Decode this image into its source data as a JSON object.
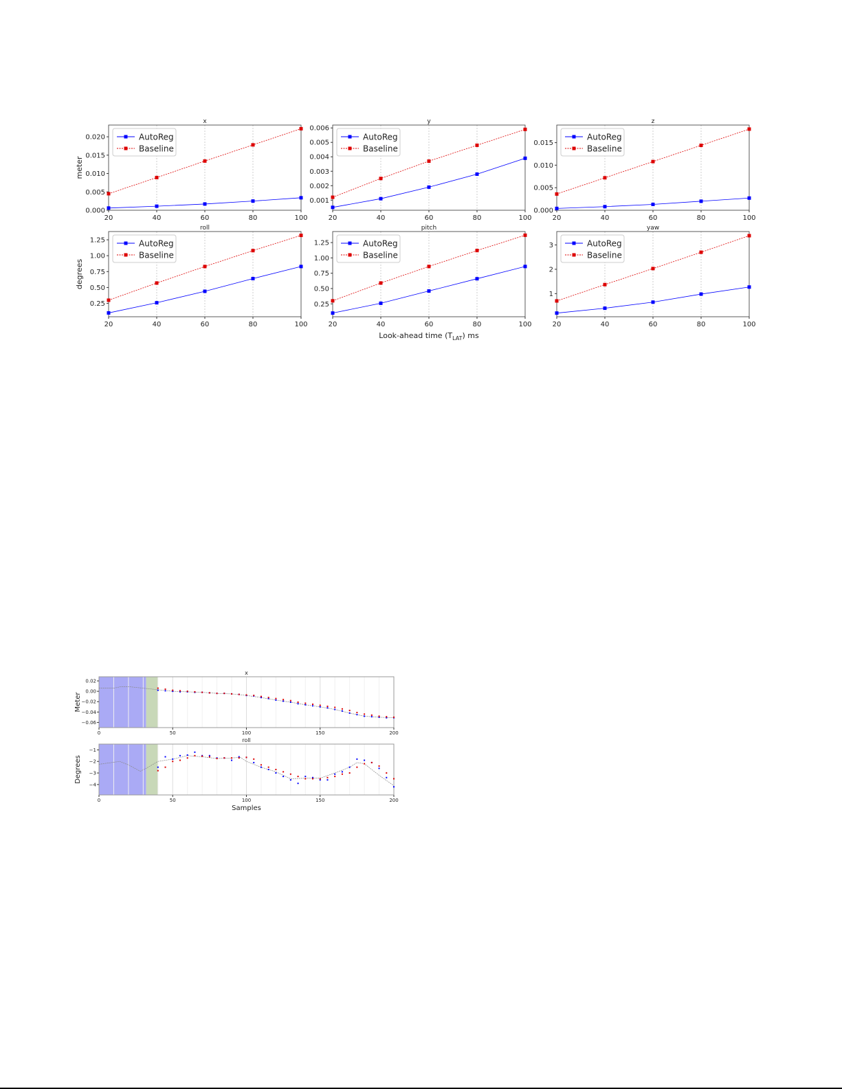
{
  "chart_data": [
    {
      "type": "line",
      "title": "x",
      "ylabel": "meter",
      "xlabel": "",
      "x": [
        20,
        40,
        60,
        80,
        100
      ],
      "xlim": [
        20,
        100
      ],
      "ylim": [
        0,
        0.0232
      ],
      "yticks": [
        "0.000",
        "0.005",
        "0.010",
        "0.015",
        "0.020"
      ],
      "grid": "vertical dotted",
      "legend": "top-left",
      "series": [
        {
          "name": "AutoReg",
          "color": "#0000ff",
          "values": [
            0.0006,
            0.0011,
            0.0017,
            0.0025,
            0.0034
          ]
        },
        {
          "name": "Baseline",
          "color": "#dd0000",
          "values": [
            0.0045,
            0.0089,
            0.0134,
            0.0178,
            0.0222
          ]
        }
      ]
    },
    {
      "type": "line",
      "title": "y",
      "ylabel": "",
      "xlabel": "",
      "x": [
        20,
        40,
        60,
        80,
        100
      ],
      "xlim": [
        20,
        100
      ],
      "ylim": [
        0.0003,
        0.0062
      ],
      "yticks": [
        "0.001",
        "0.002",
        "0.003",
        "0.004",
        "0.005",
        "0.006"
      ],
      "grid": "vertical dotted",
      "legend": "top-left",
      "series": [
        {
          "name": "AutoReg",
          "color": "#0000ff",
          "values": [
            0.0005,
            0.0011,
            0.0019,
            0.0028,
            0.0039
          ]
        },
        {
          "name": "Baseline",
          "color": "#dd0000",
          "values": [
            0.0012,
            0.0025,
            0.0037,
            0.0048,
            0.0059
          ]
        }
      ]
    },
    {
      "type": "line",
      "title": "z",
      "ylabel": "",
      "xlabel": "",
      "x": [
        20,
        40,
        60,
        80,
        100
      ],
      "xlim": [
        20,
        100
      ],
      "ylim": [
        0,
        0.0189
      ],
      "yticks": [
        "0.000",
        "0.005",
        "0.010",
        "0.015"
      ],
      "grid": "vertical dotted",
      "legend": "top-left",
      "series": [
        {
          "name": "AutoReg",
          "color": "#0000ff",
          "values": [
            0.0004,
            0.0008,
            0.0013,
            0.002,
            0.0027
          ]
        },
        {
          "name": "Baseline",
          "color": "#dd0000",
          "values": [
            0.0036,
            0.0072,
            0.0108,
            0.0144,
            0.018
          ]
        }
      ]
    },
    {
      "type": "line",
      "title": "roll",
      "ylabel": "degrees",
      "xlabel": "",
      "x": [
        20,
        40,
        60,
        80,
        100
      ],
      "xlim": [
        20,
        100
      ],
      "ylim": [
        0.04,
        1.38
      ],
      "yticks": [
        "0.25",
        "0.50",
        "0.75",
        "1.00",
        "1.25"
      ],
      "grid": "vertical dotted",
      "legend": "top-left",
      "series": [
        {
          "name": "AutoReg",
          "color": "#0000ff",
          "values": [
            0.1,
            0.26,
            0.44,
            0.64,
            0.83
          ]
        },
        {
          "name": "Baseline",
          "color": "#dd0000",
          "values": [
            0.3,
            0.57,
            0.83,
            1.08,
            1.32
          ]
        }
      ]
    },
    {
      "type": "line",
      "title": "pitch",
      "ylabel": "",
      "xlabel": "Look-ahead time (T_LAT) ms",
      "x": [
        20,
        40,
        60,
        80,
        100
      ],
      "xlim": [
        20,
        100
      ],
      "ylim": [
        0.04,
        1.43
      ],
      "yticks": [
        "0.25",
        "0.50",
        "0.75",
        "1.00",
        "1.25"
      ],
      "grid": "vertical dotted",
      "legend": "top-left",
      "series": [
        {
          "name": "AutoReg",
          "color": "#0000ff",
          "values": [
            0.1,
            0.26,
            0.46,
            0.66,
            0.86
          ]
        },
        {
          "name": "Baseline",
          "color": "#dd0000",
          "values": [
            0.3,
            0.59,
            0.86,
            1.12,
            1.37
          ]
        }
      ]
    },
    {
      "type": "line",
      "title": "yaw",
      "ylabel": "",
      "xlabel": "",
      "x": [
        20,
        40,
        60,
        80,
        100
      ],
      "xlim": [
        20,
        100
      ],
      "ylim": [
        0.05,
        3.55
      ],
      "yticks": [
        "1",
        "2",
        "3"
      ],
      "grid": "vertical dotted",
      "legend": "top-left",
      "series": [
        {
          "name": "AutoReg",
          "color": "#0000ff",
          "values": [
            0.2,
            0.4,
            0.65,
            0.98,
            1.27
          ]
        },
        {
          "name": "Baseline",
          "color": "#dd0000",
          "values": [
            0.7,
            1.37,
            2.03,
            2.7,
            3.38
          ]
        }
      ]
    },
    {
      "type": "scatter",
      "title": "x",
      "ylabel": "Meter",
      "xlabel": "",
      "xlim": [
        0,
        200
      ],
      "ylim": [
        -0.07,
        0.028
      ],
      "xticks": [
        "0",
        "50",
        "100",
        "150",
        "200"
      ],
      "yticks": [
        "−0.06",
        "−0.04",
        "−0.02",
        "0.00",
        "0.02"
      ],
      "ytick_values": [
        -0.06,
        -0.04,
        -0.02,
        0,
        0.02
      ],
      "shaded_regions": [
        {
          "from": 0,
          "to": 32,
          "color": "#aaaaf5"
        },
        {
          "from": 32,
          "to": 40,
          "color": "#c8d8b8"
        }
      ],
      "series": [
        {
          "style": "dashed-line",
          "color": "#888888",
          "x": [
            0,
            10,
            15,
            20,
            30,
            40,
            50,
            60,
            70,
            80,
            90,
            100,
            110,
            120,
            130,
            140,
            150,
            160,
            170,
            180,
            190,
            200
          ],
          "values": [
            0.006,
            0.006,
            0.009,
            0.009,
            0.006,
            0.003,
            0,
            -0.001,
            -0.002,
            -0.004,
            -0.005,
            -0.008,
            -0.012,
            -0.017,
            -0.021,
            -0.026,
            -0.03,
            -0.035,
            -0.042,
            -0.048,
            -0.05,
            -0.051
          ]
        },
        {
          "style": "dots",
          "color": "#0000ff",
          "x": [
            40,
            45,
            50,
            55,
            60,
            65,
            70,
            75,
            80,
            85,
            90,
            95,
            100,
            105,
            110,
            115,
            120,
            125,
            130,
            135,
            140,
            145,
            150,
            155,
            160,
            165,
            170,
            175,
            180,
            185,
            190,
            195,
            200
          ],
          "values": [
            0.002,
            0.001,
            0,
            -0.001,
            -0.001,
            -0.002,
            -0.002,
            -0.003,
            -0.004,
            -0.004,
            -0.005,
            -0.006,
            -0.008,
            -0.009,
            -0.012,
            -0.014,
            -0.017,
            -0.019,
            -0.021,
            -0.024,
            -0.026,
            -0.028,
            -0.03,
            -0.032,
            -0.035,
            -0.038,
            -0.042,
            -0.045,
            -0.048,
            -0.049,
            -0.05,
            -0.051,
            -0.051
          ]
        },
        {
          "style": "dots",
          "color": "#dd0000",
          "x": [
            40,
            45,
            50,
            55,
            60,
            65,
            70,
            75,
            80,
            85,
            90,
            95,
            100,
            105,
            110,
            115,
            120,
            125,
            130,
            135,
            140,
            145,
            150,
            155,
            160,
            165,
            170,
            175,
            180,
            185,
            190,
            195,
            200
          ],
          "values": [
            0.006,
            0.004,
            0.002,
            0.001,
            0,
            -0.001,
            -0.002,
            -0.003,
            -0.004,
            -0.004,
            -0.005,
            -0.006,
            -0.007,
            -0.008,
            -0.01,
            -0.012,
            -0.014,
            -0.016,
            -0.018,
            -0.021,
            -0.023,
            -0.025,
            -0.027,
            -0.029,
            -0.031,
            -0.034,
            -0.037,
            -0.041,
            -0.044,
            -0.046,
            -0.048,
            -0.049,
            -0.05
          ]
        }
      ]
    },
    {
      "type": "scatter",
      "title": "roll",
      "ylabel": "Degrees",
      "xlabel": "Samples",
      "xlim": [
        0,
        200
      ],
      "ylim": [
        -4.9,
        -0.5
      ],
      "xticks": [
        "0",
        "50",
        "100",
        "150",
        "200"
      ],
      "yticks": [
        "−4",
        "−3",
        "−2",
        "−1"
      ],
      "ytick_values": [
        -4,
        -3,
        -2,
        -1
      ],
      "shaded_regions": [
        {
          "from": 0,
          "to": 32,
          "color": "#aaaaf5"
        },
        {
          "from": 32,
          "to": 40,
          "color": "#c8d8b8"
        }
      ],
      "series": [
        {
          "style": "dashed-line",
          "color": "#888888",
          "x": [
            0,
            14,
            20,
            28,
            32,
            40,
            50,
            60,
            70,
            80,
            90,
            96,
            100,
            110,
            120,
            130,
            140,
            150,
            160,
            170,
            175,
            180,
            190,
            200
          ],
          "values": [
            -2.25,
            -2.0,
            -2.3,
            -2.85,
            -2.6,
            -2.0,
            -1.8,
            -1.5,
            -1.6,
            -1.75,
            -1.7,
            -1.65,
            -2.0,
            -2.5,
            -2.9,
            -3.5,
            -3.45,
            -3.45,
            -3.0,
            -2.5,
            -2.1,
            -2.2,
            -3.2,
            -4.1
          ]
        },
        {
          "style": "dots",
          "color": "#0000ff",
          "x": [
            40,
            45,
            50,
            55,
            60,
            65,
            70,
            75,
            80,
            85,
            90,
            95,
            100,
            105,
            110,
            115,
            120,
            125,
            130,
            135,
            140,
            145,
            150,
            155,
            160,
            165,
            170,
            175,
            180,
            185,
            190,
            195,
            200
          ],
          "values": [
            -2.5,
            -1.6,
            -1.8,
            -1.5,
            -1.45,
            -1.2,
            -1.5,
            -1.5,
            -1.7,
            -1.7,
            -1.9,
            -1.6,
            -1.65,
            -2.1,
            -2.5,
            -2.7,
            -3.0,
            -3.3,
            -3.6,
            -3.9,
            -3.3,
            -3.4,
            -3.6,
            -3.6,
            -3.1,
            -2.9,
            -2.5,
            -1.8,
            -1.9,
            -2.1,
            -2.6,
            -3.4,
            -4.2
          ]
        },
        {
          "style": "dots",
          "color": "#dd0000",
          "x": [
            40,
            45,
            50,
            55,
            60,
            65,
            70,
            75,
            80,
            85,
            90,
            95,
            100,
            105,
            110,
            115,
            120,
            125,
            130,
            135,
            140,
            145,
            150,
            155,
            160,
            165,
            170,
            175,
            180,
            185,
            190,
            195,
            200
          ],
          "values": [
            -2.8,
            -2.5,
            -2.0,
            -1.9,
            -1.7,
            -1.5,
            -1.55,
            -1.6,
            -1.75,
            -1.7,
            -1.7,
            -1.7,
            -1.65,
            -1.8,
            -2.3,
            -2.5,
            -2.7,
            -2.9,
            -3.1,
            -3.3,
            -3.5,
            -3.5,
            -3.5,
            -3.4,
            -3.3,
            -3.1,
            -3.0,
            -2.5,
            -2.2,
            -2.1,
            -2.4,
            -3.0,
            -3.5
          ]
        }
      ]
    }
  ],
  "figure1": {
    "xlabel_main": "Look-ahead time (T",
    "xlabel_sub": "LAT",
    "xlabel_end": ") ms"
  }
}
